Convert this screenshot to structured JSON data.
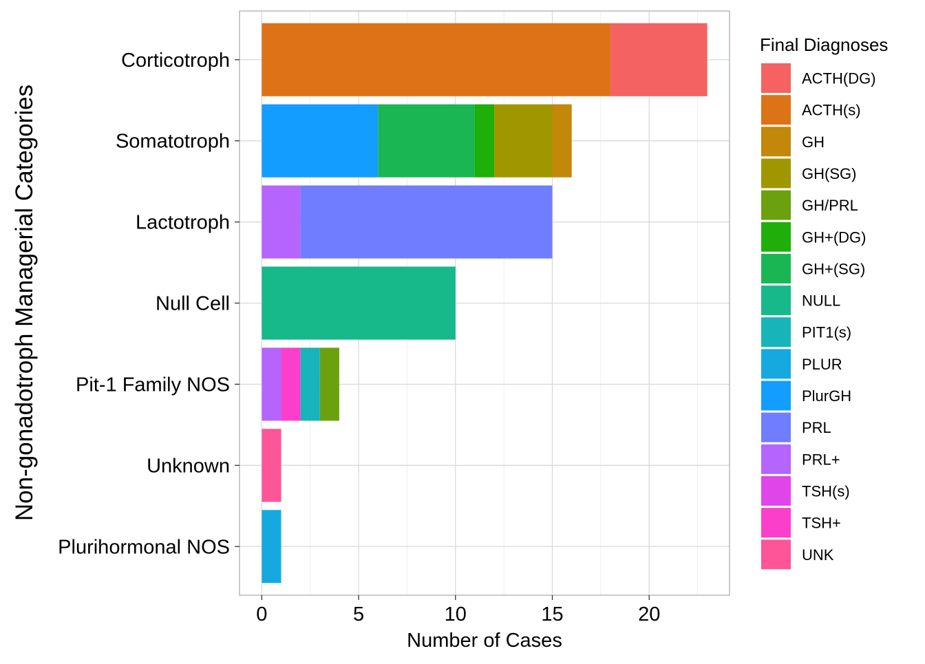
{
  "chart_data": {
    "type": "bar",
    "orientation": "horizontal",
    "stacked": true,
    "xlabel": "Number of Cases",
    "ylabel": "Non-gonadotroph Managerial Categories",
    "xlim": [
      -1.15,
      24.15
    ],
    "x_ticks": [
      0,
      5,
      10,
      15,
      20
    ],
    "grid": true,
    "legend_position": "right",
    "legend_title": "Final Diagnoses",
    "categories": [
      "Corticotroph",
      "Somatotroph",
      "Lactotroph",
      "Null Cell",
      "Pit-1 Family NOS",
      "Unknown",
      "Plurihormonal NOS"
    ],
    "series": [
      {
        "name": "PlurGH",
        "color": "#139DFF",
        "values": [
          0,
          6,
          0,
          0,
          0,
          0,
          0
        ]
      },
      {
        "name": "GH+(SG)",
        "color": "#19B653",
        "values": [
          0,
          5,
          0,
          0,
          0,
          0,
          0
        ]
      },
      {
        "name": "GH+(DG)",
        "color": "#1FAE0A",
        "values": [
          0,
          1,
          0,
          0,
          0,
          0,
          0
        ]
      },
      {
        "name": "GH(SG)",
        "color": "#A09700",
        "values": [
          0,
          3,
          0,
          0,
          0,
          0,
          0
        ]
      },
      {
        "name": "GH",
        "color": "#C38709",
        "values": [
          0,
          1,
          0,
          0,
          0,
          0,
          0
        ]
      },
      {
        "name": "ACTH(s)",
        "color": "#DD7216",
        "values": [
          18,
          0,
          0,
          0,
          0,
          0,
          0
        ]
      },
      {
        "name": "ACTH(DG)",
        "color": "#F46262",
        "values": [
          5,
          0,
          0,
          0,
          0,
          0,
          0
        ]
      },
      {
        "name": "PRL+",
        "color": "#B564FE",
        "values": [
          0,
          0,
          2,
          0,
          1,
          0,
          0
        ]
      },
      {
        "name": "PRL",
        "color": "#717DFF",
        "values": [
          0,
          0,
          13,
          0,
          0,
          0,
          0
        ]
      },
      {
        "name": "NULL",
        "color": "#17B98A",
        "values": [
          0,
          0,
          0,
          10,
          0,
          0,
          0
        ]
      },
      {
        "name": "TSH+",
        "color": "#FC3FCB",
        "values": [
          0,
          0,
          0,
          0,
          1,
          0,
          0
        ]
      },
      {
        "name": "PIT1(s)",
        "color": "#17B4BA",
        "values": [
          0,
          0,
          0,
          0,
          1,
          0,
          0
        ]
      },
      {
        "name": "GH/PRL",
        "color": "#6BA10E",
        "values": [
          0,
          0,
          0,
          0,
          1,
          0,
          0
        ]
      },
      {
        "name": "UNK",
        "color": "#FD5597",
        "values": [
          0,
          0,
          0,
          0,
          0,
          1,
          0
        ]
      },
      {
        "name": "PLUR",
        "color": "#15A9E0",
        "values": [
          0,
          0,
          0,
          0,
          0,
          0,
          1
        ]
      }
    ],
    "legend": [
      {
        "label": "ACTH(DG)",
        "color": "#F46262"
      },
      {
        "label": "ACTH(s)",
        "color": "#DD7216"
      },
      {
        "label": "GH",
        "color": "#C38709"
      },
      {
        "label": "GH(SG)",
        "color": "#A09700"
      },
      {
        "label": "GH/PRL",
        "color": "#6BA10E"
      },
      {
        "label": "GH+(DG)",
        "color": "#1FAE0A"
      },
      {
        "label": "GH+(SG)",
        "color": "#19B653"
      },
      {
        "label": "NULL",
        "color": "#17B98A"
      },
      {
        "label": "PIT1(s)",
        "color": "#17B4BA"
      },
      {
        "label": "PLUR",
        "color": "#15A9E0"
      },
      {
        "label": "PlurGH",
        "color": "#139DFF"
      },
      {
        "label": "PRL",
        "color": "#717DFF"
      },
      {
        "label": "PRL+",
        "color": "#B564FE"
      },
      {
        "label": "TSH(s)",
        "color": "#E045EA"
      },
      {
        "label": "TSH+",
        "color": "#FC3FCB"
      },
      {
        "label": "UNK",
        "color": "#FD5597"
      }
    ]
  }
}
